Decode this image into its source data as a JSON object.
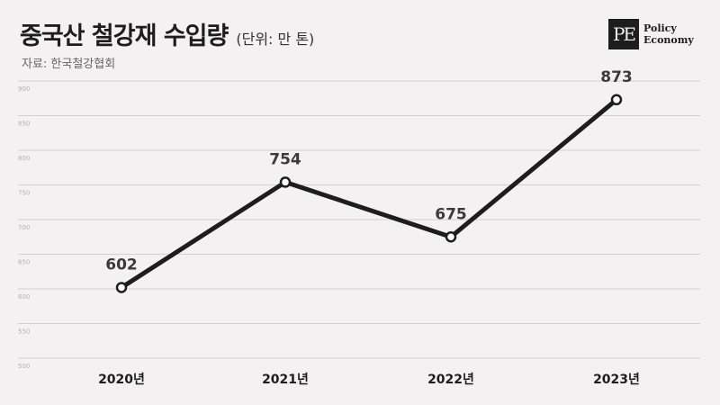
{
  "header": {
    "title": "중국산 철강재 수입량",
    "subtitle": "(단위: 만 톤)",
    "source": "자료: 한국철강협회"
  },
  "logo": {
    "mark": "PE",
    "line1": "Policy",
    "line2": "Economy"
  },
  "chart_data": {
    "type": "line",
    "title": "중국산 철강재 수입량",
    "subtitle": "(단위: 만 톤)",
    "categories": [
      "2020년",
      "2021년",
      "2022년",
      "2023년"
    ],
    "series": [
      {
        "values": [
          602,
          754,
          675,
          873
        ]
      }
    ],
    "y_ticks": [
      500,
      550,
      600,
      650,
      700,
      750,
      800,
      850,
      900
    ],
    "ylim": [
      500,
      900
    ],
    "grid": true,
    "legend": "none",
    "line_color": "#1d1d1d"
  }
}
